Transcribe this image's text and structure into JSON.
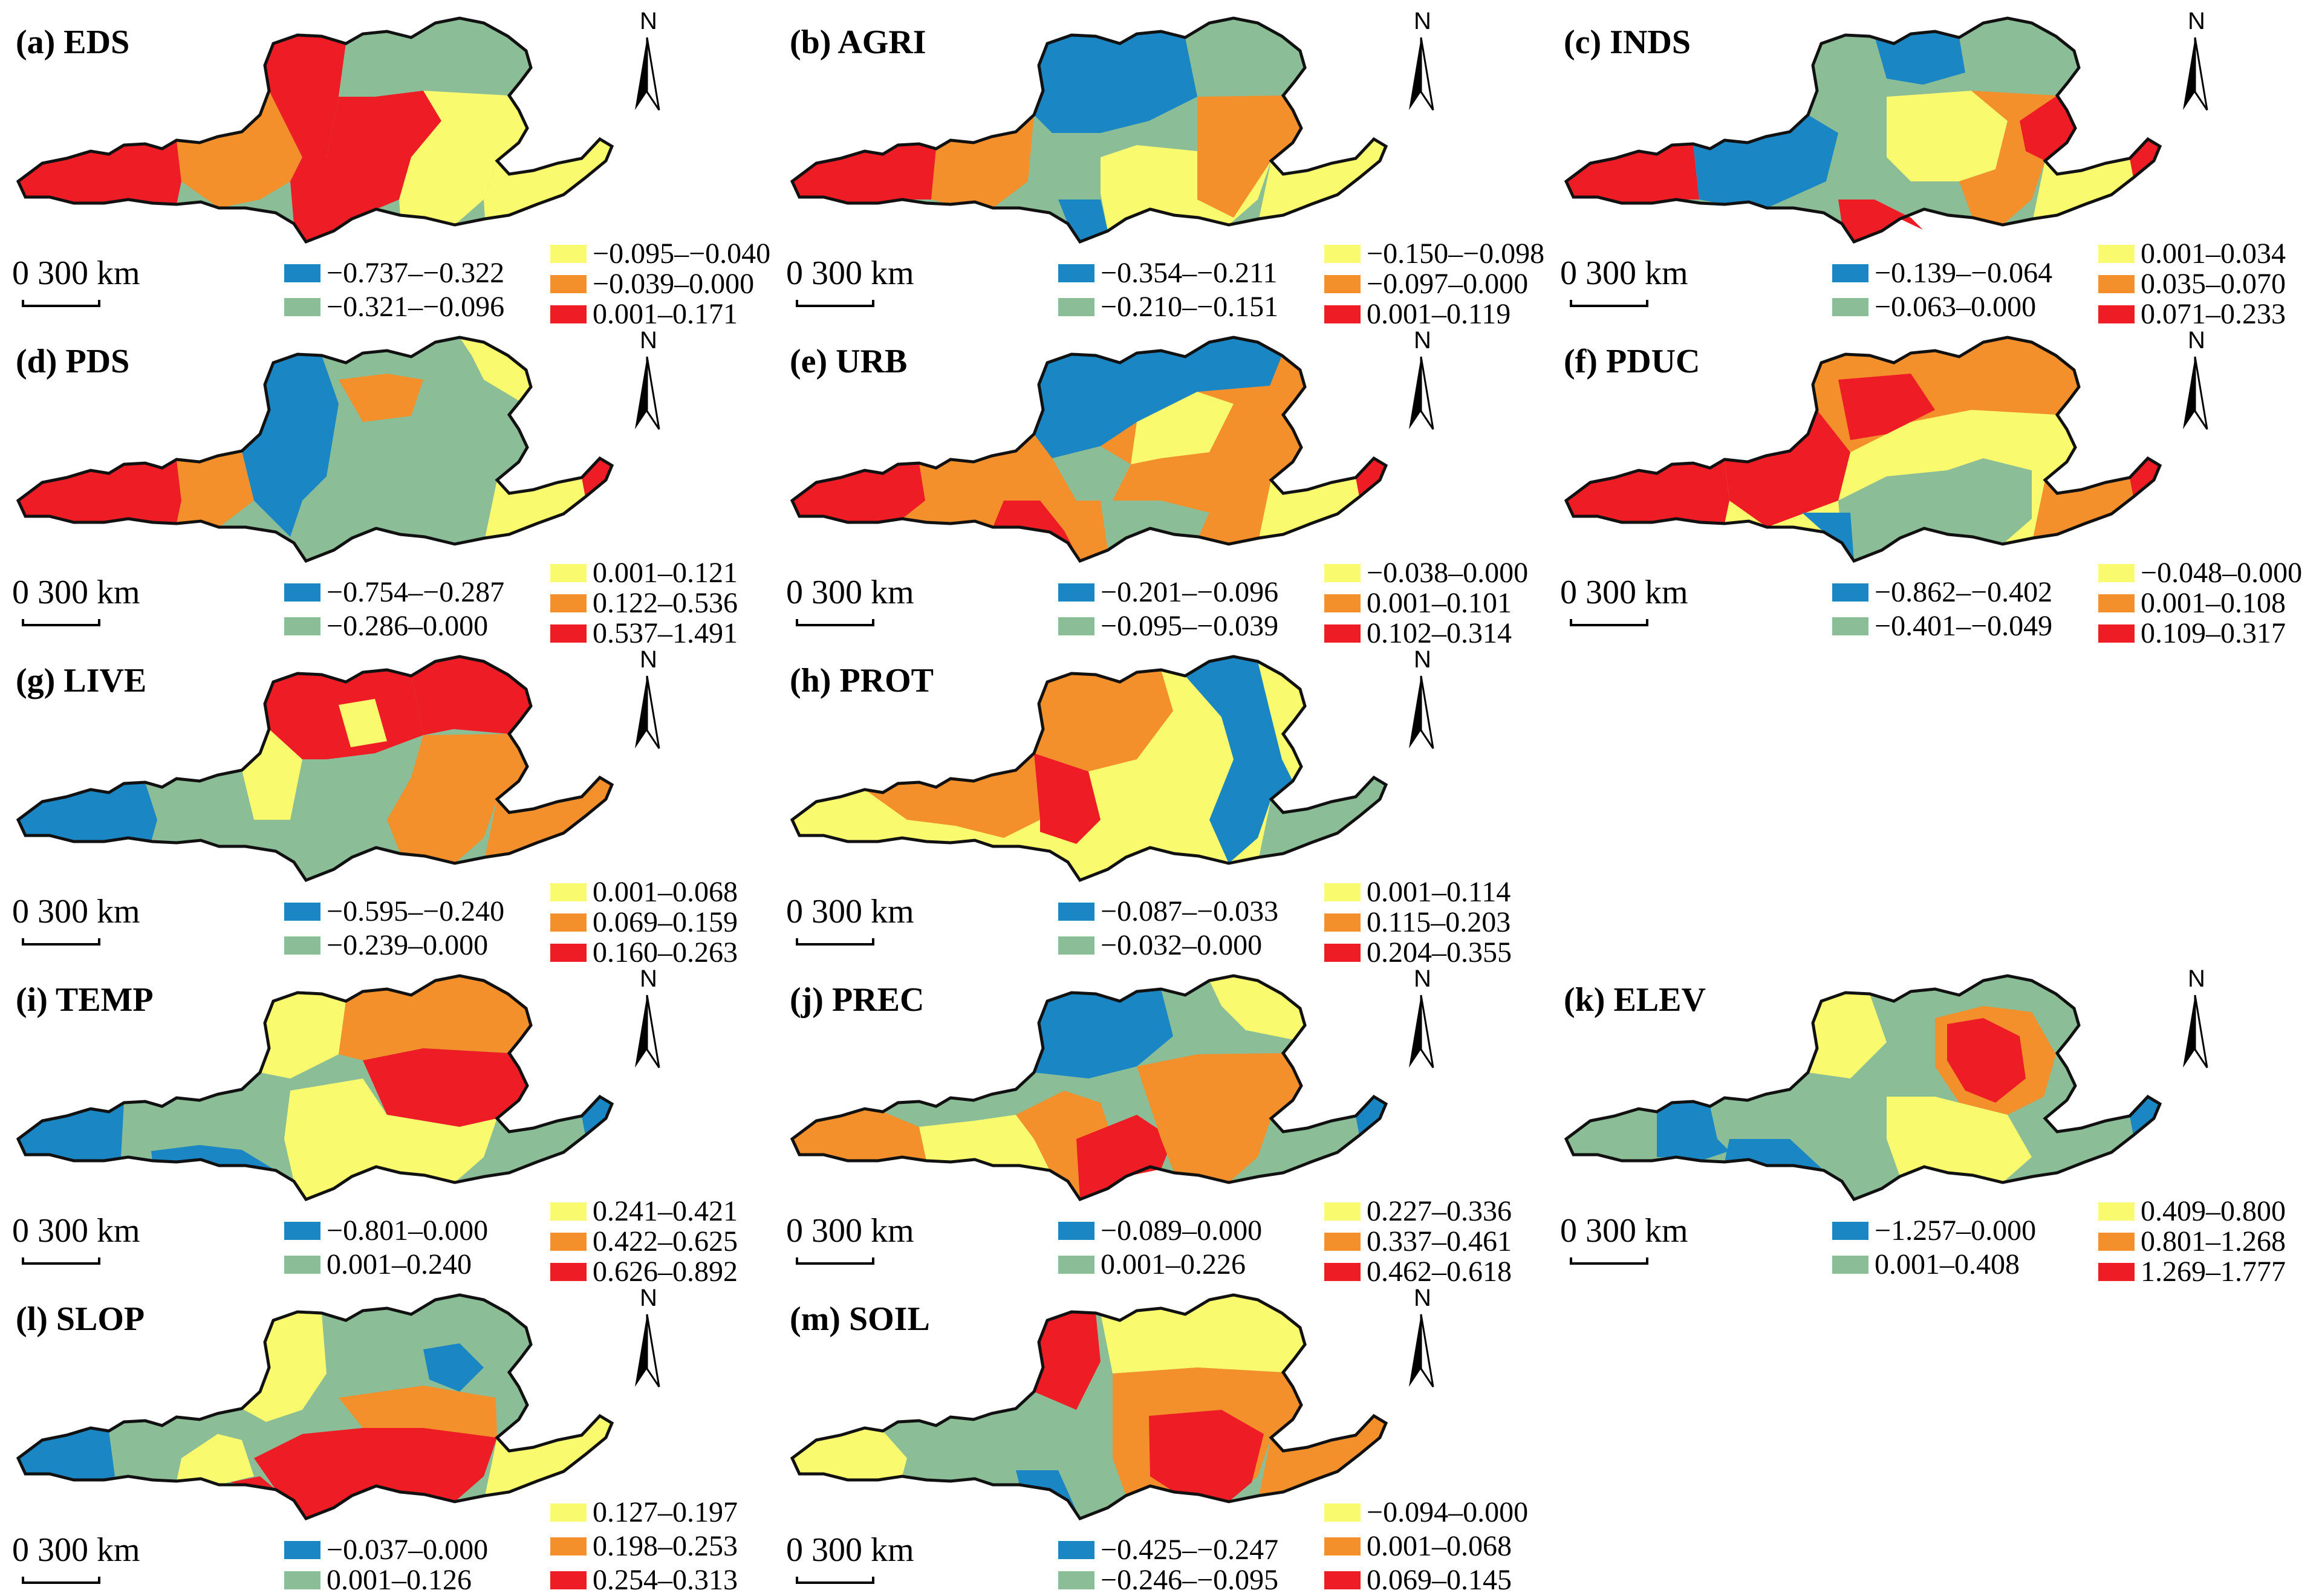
{
  "figure": {
    "colors": {
      "blue": "#1a86c4",
      "green": "#8bbd96",
      "yellow": "#fafa6e",
      "orange": "#f4902c",
      "red": "#ee1c24",
      "outline": "#111111",
      "inner_boundary": "#7a8a7e"
    },
    "north_label": "N",
    "scale_label": "0   300 km",
    "panels": [
      {
        "title": "(a) EDS",
        "legend": [
          "−0.737–−0.322",
          "−0.321–−0.096",
          "−0.095–−0.040",
          "−0.039–0.000",
          "0.001–0.171"
        ]
      },
      {
        "title": "(b) AGRI",
        "legend": [
          "−0.354–−0.211",
          "−0.210–−0.151",
          "−0.150–−0.098",
          "−0.097–0.000",
          "0.001–0.119"
        ]
      },
      {
        "title": "(c) INDS",
        "legend": [
          "−0.139–−0.064",
          "−0.063–0.000",
          "0.001–0.034",
          "0.035–0.070",
          "0.071–0.233"
        ]
      },
      {
        "title": "(d) PDS",
        "legend": [
          "−0.754–−0.287",
          "−0.286–0.000",
          "0.001–0.121",
          "0.122–0.536",
          "0.537–1.491"
        ]
      },
      {
        "title": "(e) URB",
        "legend": [
          "−0.201–−0.096",
          "−0.095–−0.039",
          "−0.038–0.000",
          "0.001–0.101",
          "0.102–0.314"
        ]
      },
      {
        "title": "(f) PDUC",
        "legend": [
          "−0.862–−0.402",
          "−0.401–−0.049",
          "−0.048–0.000",
          "0.001–0.108",
          "0.109–0.317"
        ]
      },
      {
        "title": "(g) LIVE",
        "legend": [
          "−0.595–−0.240",
          "−0.239–0.000",
          "0.001–0.068",
          "0.069–0.159",
          "0.160–0.263"
        ]
      },
      {
        "title": "(h) PROT",
        "legend": [
          "−0.087–−0.033",
          "−0.032–0.000",
          "0.001–0.114",
          "0.115–0.203",
          "0.204–0.355"
        ]
      },
      {
        "title": "(i) TEMP",
        "legend": [
          "−0.801–0.000",
          "0.001–0.240",
          "0.241–0.421",
          "0.422–0.625",
          "0.626–0.892"
        ]
      },
      {
        "title": "(j) PREC",
        "legend": [
          "−0.089–0.000",
          "0.001–0.226",
          "0.227–0.336",
          "0.337–0.461",
          "0.462–0.618"
        ]
      },
      {
        "title": "(k) ELEV",
        "legend": [
          "−1.257–0.000",
          "0.001–0.408",
          "0.409–0.800",
          "0.801–1.268",
          "1.269–1.777"
        ]
      },
      {
        "title": "(l) SLOP",
        "legend": [
          "−0.037–0.000",
          "0.001–0.126",
          "0.127–0.197",
          "0.198–0.253",
          "0.254–0.313"
        ]
      },
      {
        "title": "(m) SOIL",
        "legend": [
          "−0.425–−0.247",
          "−0.246–−0.095",
          "−0.094–0.000",
          "0.001–0.068",
          "0.069–0.145"
        ]
      }
    ]
  }
}
